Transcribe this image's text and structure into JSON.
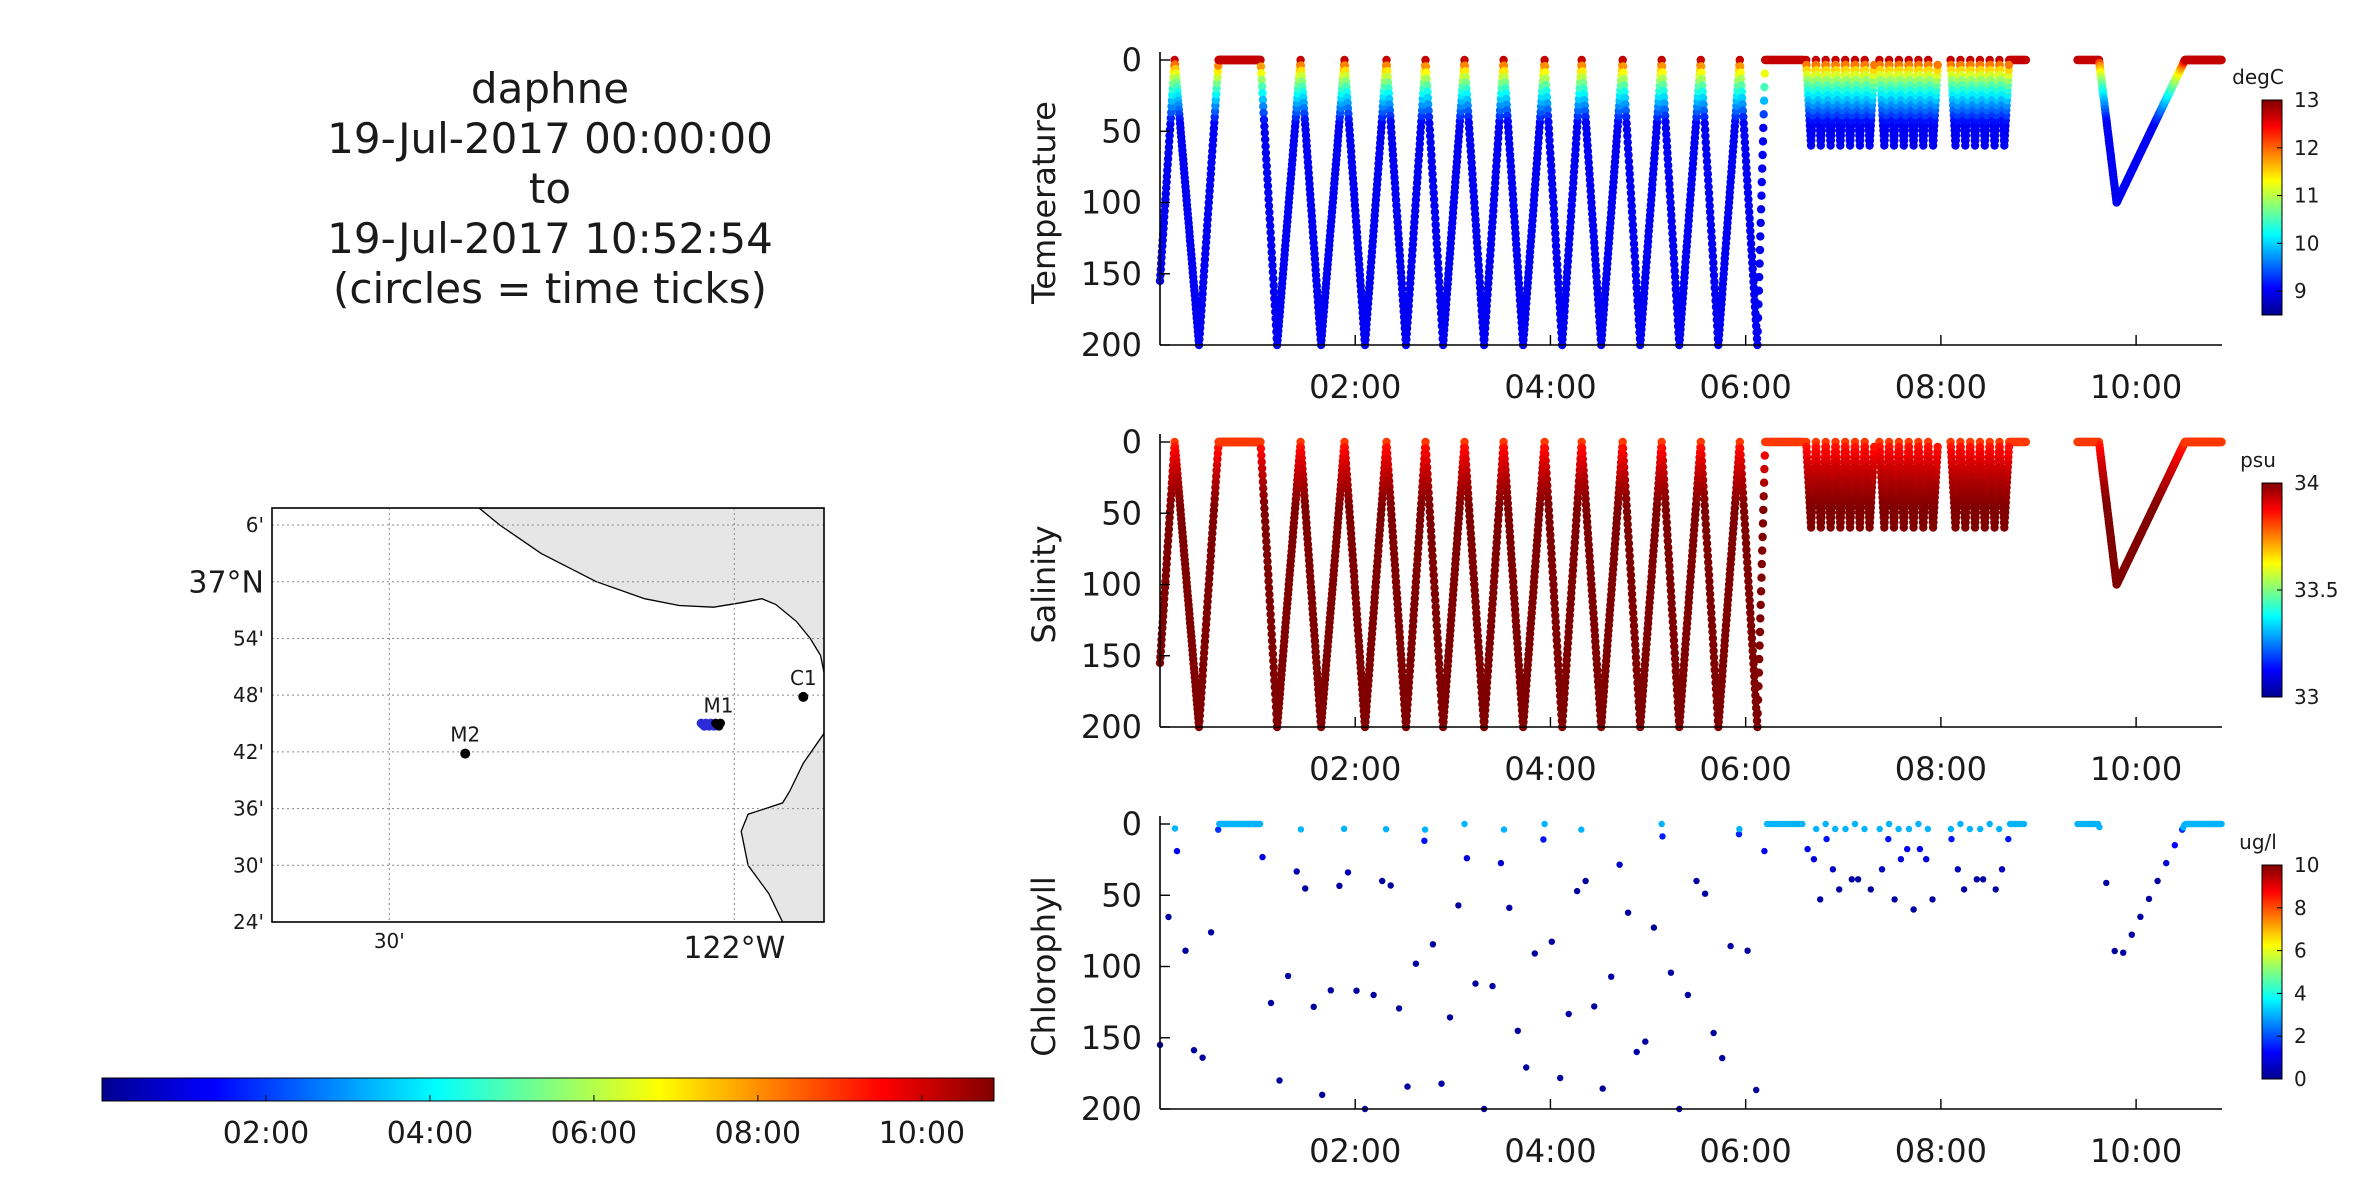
{
  "title_lines": [
    "daphne",
    "19-Jul-2017 00:00:00",
    "to",
    "19-Jul-2017 10:52:54",
    "(circles = time ticks)"
  ],
  "colors": {
    "jet": [
      "#00008f",
      "#0000ff",
      "#0080ff",
      "#00ffff",
      "#80ff80",
      "#ffff00",
      "#ff8000",
      "#ff0000",
      "#800000"
    ],
    "land": "#e6e6e6",
    "station": "#000000",
    "track": "#2b2bd9"
  },
  "time_colorbar": {
    "ticks": [
      "02:00",
      "04:00",
      "06:00",
      "08:00",
      "10:00"
    ],
    "tick_hours": [
      2,
      4,
      6,
      8,
      10
    ],
    "range_hours": [
      0,
      10.88
    ]
  },
  "map": {
    "lat_labels": [
      "6'",
      "37°N",
      "54'",
      "48'",
      "42'",
      "36'",
      "30'",
      "24'"
    ],
    "lat_values": [
      37.1,
      37.0,
      36.9,
      36.8,
      36.7,
      36.6,
      36.5,
      36.4
    ],
    "lon_labels": [
      "30'",
      "122°W"
    ],
    "lon_values": [
      -122.5,
      -122.0
    ],
    "lat_range": [
      36.4,
      37.13
    ],
    "lon_range": [
      -122.67,
      -121.87
    ],
    "stations": [
      {
        "name": "M1",
        "lat": 36.748,
        "lon": -122.023
      },
      {
        "name": "M2",
        "lat": 36.697,
        "lon": -122.39
      },
      {
        "name": "C1",
        "lat": 36.797,
        "lon": -121.9
      }
    ],
    "track": {
      "lat": 36.748,
      "lon_start": -122.048,
      "lon_end": -122.02
    }
  },
  "chart_data": [
    {
      "type": "scatter",
      "title": "",
      "ylabel": "Temperature",
      "xlabel": "",
      "unit": "degC",
      "x_unit": "hours since 19-Jul-2017 00:00",
      "xlim": [
        0,
        10.88
      ],
      "ylim": [
        200,
        0
      ],
      "x_ticks": [
        "02:00",
        "04:00",
        "06:00",
        "08:00",
        "10:00"
      ],
      "y_ticks": [
        0,
        50,
        100,
        150,
        200
      ],
      "clim": [
        8.5,
        13
      ],
      "cbar_ticks": [
        9,
        10,
        11,
        12,
        13
      ],
      "surface_value": 12.7,
      "deep_value": 9.0
    },
    {
      "type": "scatter",
      "title": "",
      "ylabel": "Salinity",
      "xlabel": "",
      "unit": "psu",
      "x_unit": "hours since 19-Jul-2017 00:00",
      "xlim": [
        0,
        10.88
      ],
      "ylim": [
        200,
        0
      ],
      "x_ticks": [
        "02:00",
        "04:00",
        "06:00",
        "08:00",
        "10:00"
      ],
      "y_ticks": [
        0,
        50,
        100,
        150,
        200
      ],
      "clim": [
        33,
        34
      ],
      "cbar_ticks": [
        33,
        33.5,
        34
      ],
      "cbar_tick_labels": [
        "33",
        "33.5",
        "34"
      ],
      "surface_value": 33.82,
      "deep_value": 34.0
    },
    {
      "type": "scatter",
      "title": "",
      "ylabel": "Chlorophyll",
      "xlabel": "",
      "unit": "ug/l",
      "x_unit": "hours since 19-Jul-2017 00:00",
      "xlim": [
        0,
        10.88
      ],
      "ylim": [
        200,
        0
      ],
      "x_ticks": [
        "02:00",
        "04:00",
        "06:00",
        "08:00",
        "10:00"
      ],
      "y_ticks": [
        0,
        50,
        100,
        150,
        200
      ],
      "clim": [
        0,
        10
      ],
      "cbar_ticks": [
        0,
        2,
        4,
        6,
        8,
        10
      ],
      "surface_value": 3.0,
      "deep_value": 0.2,
      "sparse": true
    }
  ],
  "profile_track": {
    "vertex_hours": [
      0,
      0.15,
      0.4,
      0.6,
      1.03,
      1.2,
      1.44,
      1.65,
      1.89,
      2.1,
      2.32,
      2.52,
      2.72,
      2.9,
      3.12,
      3.32,
      3.52,
      3.72,
      3.94,
      4.12,
      4.32,
      4.52,
      4.74,
      4.92,
      5.14,
      5.32,
      5.54,
      5.72,
      5.94,
      6.12,
      6.2
    ],
    "vertex_depths": [
      155,
      0,
      200,
      0,
      0,
      200,
      0,
      200,
      0,
      200,
      0,
      200,
      0,
      200,
      0,
      200,
      0,
      200,
      0,
      200,
      0,
      200,
      0,
      200,
      0,
      200,
      0,
      200,
      0,
      200,
      0
    ],
    "yo_groups": [
      {
        "start_hour": 6.62,
        "count": 7,
        "period": 0.1,
        "max_depth": 60
      },
      {
        "start_hour": 7.37,
        "count": 6,
        "period": 0.1,
        "max_depth": 60
      },
      {
        "start_hour": 8.1,
        "count": 6,
        "period": 0.1,
        "max_depth": 60
      }
    ],
    "flat_segments": [
      [
        6.2,
        6.6
      ],
      [
        8.7,
        8.88
      ],
      [
        9.4,
        9.62
      ]
    ],
    "final_dive": {
      "vertex_hours": [
        9.62,
        9.8,
        10.5,
        10.88
      ],
      "vertex_depths": [
        0,
        100,
        0,
        0
      ]
    }
  }
}
